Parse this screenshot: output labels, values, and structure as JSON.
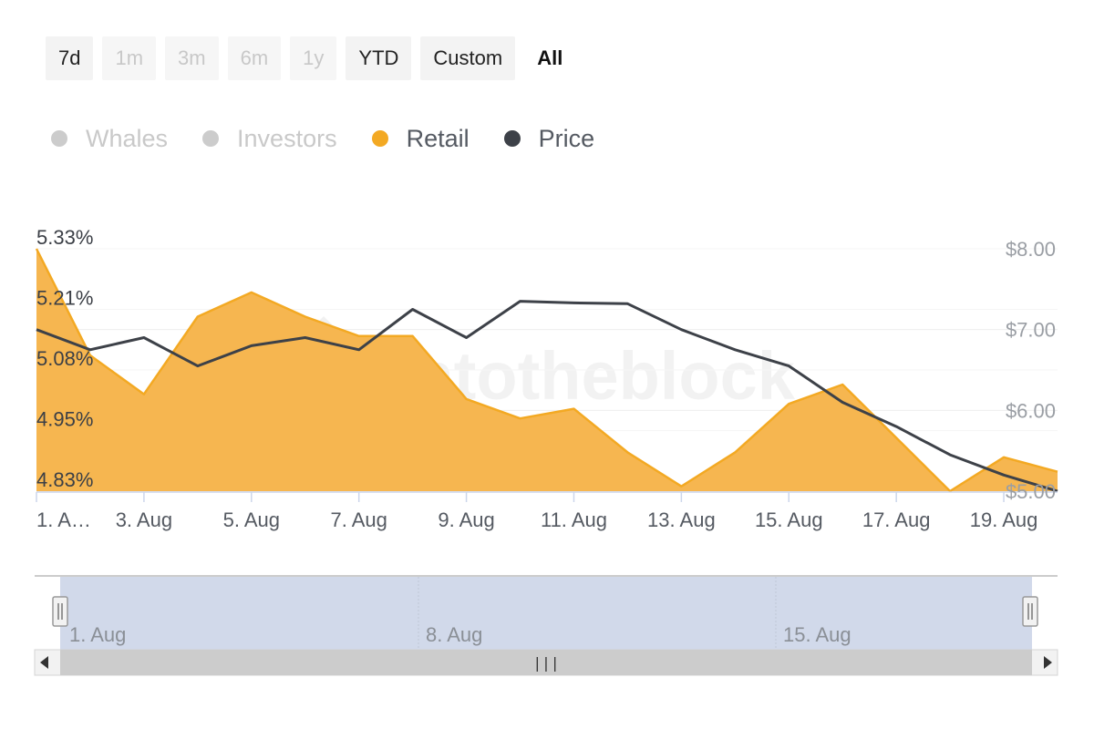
{
  "range_selector": {
    "buttons": [
      {
        "label": "7d",
        "state": "enabled"
      },
      {
        "label": "1m",
        "state": "disabled"
      },
      {
        "label": "3m",
        "state": "disabled"
      },
      {
        "label": "6m",
        "state": "disabled"
      },
      {
        "label": "1y",
        "state": "disabled"
      },
      {
        "label": "YTD",
        "state": "enabled"
      },
      {
        "label": "Custom",
        "state": "enabled"
      },
      {
        "label": "All",
        "state": "active"
      }
    ]
  },
  "legend": {
    "items": [
      {
        "label": "Whales",
        "color": "#cccccc",
        "visible": false
      },
      {
        "label": "Investors",
        "color": "#cccccc",
        "visible": false
      },
      {
        "label": "Retail",
        "color": "#f3a923",
        "visible": true
      },
      {
        "label": "Price",
        "color": "#3d4148",
        "visible": true
      }
    ]
  },
  "watermark": "intotheblock",
  "chart_data": {
    "type": "area",
    "x": [
      "1. Aug",
      "2. Aug",
      "3. Aug",
      "4. Aug",
      "5. Aug",
      "6. Aug",
      "7. Aug",
      "8. Aug",
      "9. Aug",
      "10. Aug",
      "11. Aug",
      "12. Aug",
      "13. Aug",
      "14. Aug",
      "15. Aug",
      "16. Aug",
      "17. Aug",
      "18. Aug",
      "19. Aug",
      "20. Aug"
    ],
    "x_tick_labels": [
      "1. A…",
      "3. Aug",
      "5. Aug",
      "7. Aug",
      "9. Aug",
      "11. Aug",
      "13. Aug",
      "15. Aug",
      "17. Aug",
      "19. Aug"
    ],
    "y_left": {
      "ticks": [
        "5.33%",
        "5.21%",
        "5.08%",
        "4.95%",
        "4.83%"
      ],
      "range": [
        4.83,
        5.33
      ],
      "unit": "%"
    },
    "y_right": {
      "ticks": [
        "$8.00",
        "$7.00",
        "$6.00",
        "$5.00"
      ],
      "range": [
        5.0,
        8.0
      ]
    },
    "series": [
      {
        "name": "Retail",
        "axis": "left",
        "kind": "area",
        "color": "#f3a923",
        "fill": "#f6b650",
        "values": [
          5.33,
          5.11,
          5.03,
          5.19,
          5.24,
          5.19,
          5.15,
          5.15,
          5.02,
          4.98,
          5.0,
          4.91,
          4.84,
          4.91,
          5.01,
          5.05,
          4.94,
          4.83,
          4.9,
          4.87
        ]
      },
      {
        "name": "Price",
        "axis": "right",
        "kind": "line",
        "color": "#3d4148",
        "values": [
          7.0,
          6.75,
          6.9,
          6.55,
          6.8,
          6.9,
          6.75,
          7.25,
          6.9,
          7.35,
          7.33,
          7.32,
          7.0,
          6.75,
          6.55,
          6.1,
          5.8,
          5.45,
          5.2,
          5.0
        ]
      }
    ],
    "grid": true
  },
  "navigator": {
    "labels": [
      "1. Aug",
      "8. Aug",
      "15. Aug"
    ],
    "scroll_grip": "|||"
  }
}
